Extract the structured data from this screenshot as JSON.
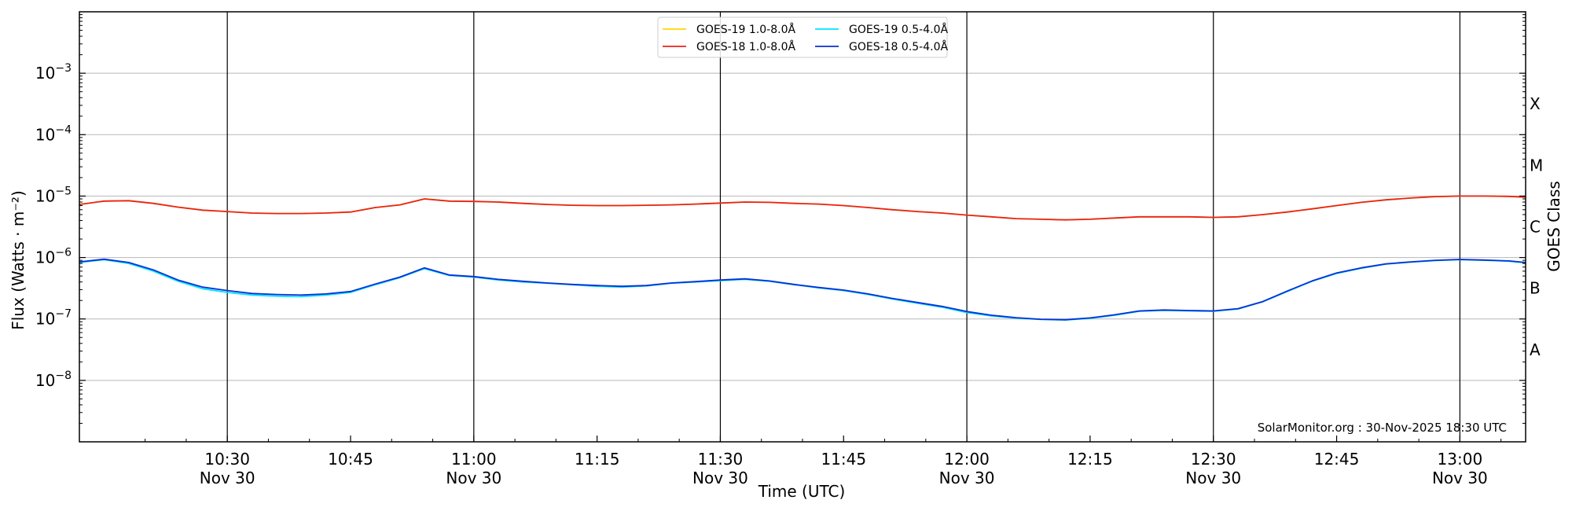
{
  "chart_data": {
    "type": "line",
    "ylabel": "Flux (Watts · m⁻²)",
    "y2label": "GOES Class",
    "xlabel": "Time (UTC)",
    "yscale": "log",
    "ylim": [
      1e-09,
      0.01
    ],
    "xlim": [
      "10:12",
      "13:08"
    ],
    "y_tick_labels": [
      {
        "value": 1e-08,
        "base": "10",
        "exp": "−8"
      },
      {
        "value": 1e-07,
        "base": "10",
        "exp": "−7"
      },
      {
        "value": 1e-06,
        "base": "10",
        "exp": "−6"
      },
      {
        "value": 1e-05,
        "base": "10",
        "exp": "−5"
      },
      {
        "value": 0.0001,
        "base": "10",
        "exp": "−4"
      },
      {
        "value": 0.001,
        "base": "10",
        "exp": "−3"
      }
    ],
    "x_ticks": [
      {
        "time": "10:30",
        "label": "10:30",
        "date": "Nov 30",
        "vline": true
      },
      {
        "time": "10:45",
        "label": "10:45",
        "date": "",
        "vline": false
      },
      {
        "time": "11:00",
        "label": "11:00",
        "date": "Nov 30",
        "vline": true
      },
      {
        "time": "11:15",
        "label": "11:15",
        "date": "",
        "vline": false
      },
      {
        "time": "11:30",
        "label": "11:30",
        "date": "Nov 30",
        "vline": true
      },
      {
        "time": "11:45",
        "label": "11:45",
        "date": "",
        "vline": false
      },
      {
        "time": "12:00",
        "label": "12:00",
        "date": "Nov 30",
        "vline": true
      },
      {
        "time": "12:15",
        "label": "12:15",
        "date": "",
        "vline": false
      },
      {
        "time": "12:30",
        "label": "12:30",
        "date": "Nov 30",
        "vline": true
      },
      {
        "time": "12:45",
        "label": "12:45",
        "date": "",
        "vline": false
      },
      {
        "time": "13:00",
        "label": "13:00",
        "date": "Nov 30",
        "vline": true
      }
    ],
    "goes_classes": [
      {
        "label": "A",
        "center": 3.16e-08
      },
      {
        "label": "B",
        "center": 3.16e-07
      },
      {
        "label": "C",
        "center": 3.16e-06
      },
      {
        "label": "M",
        "center": 3.16e-05
      },
      {
        "label": "X",
        "center": 0.000316
      }
    ],
    "grid": "horizontal at decades",
    "legend": "top-center",
    "series": [
      {
        "name": "GOES-19 1.0-8.0Å",
        "color": "#FFD700",
        "x": [
          "10:12",
          "10:15",
          "10:18",
          "10:21",
          "10:24",
          "10:27",
          "10:30",
          "10:33",
          "10:36",
          "10:39",
          "10:42",
          "10:45",
          "10:48",
          "10:51",
          "10:54",
          "10:57",
          "11:00",
          "11:03",
          "11:06",
          "11:09",
          "11:12",
          "11:15",
          "11:18",
          "11:21",
          "11:24",
          "11:27",
          "11:30",
          "11:33",
          "11:36",
          "11:39",
          "11:42",
          "11:45",
          "11:48",
          "11:51",
          "11:54",
          "11:57",
          "12:00",
          "12:03",
          "12:06",
          "12:09",
          "12:12",
          "12:15",
          "12:18",
          "12:21",
          "12:24",
          "12:27",
          "12:30",
          "12:33",
          "12:36",
          "12:39",
          "12:42",
          "12:45",
          "12:48",
          "12:51",
          "12:54",
          "12:57",
          "13:00",
          "13:03",
          "13:06",
          "13:08"
        ],
        "y": [
          7.3e-06,
          8.3e-06,
          8.4e-06,
          7.6e-06,
          6.6e-06,
          5.9e-06,
          5.6e-06,
          5.3e-06,
          5.2e-06,
          5.2e-06,
          5.3e-06,
          5.5e-06,
          6.5e-06,
          7.2e-06,
          9e-06,
          8.3e-06,
          8.2e-06,
          8e-06,
          7.6e-06,
          7.3e-06,
          7.1e-06,
          7e-06,
          7e-06,
          7.1e-06,
          7.2e-06,
          7.4e-06,
          7.7e-06,
          8e-06,
          7.9e-06,
          7.6e-06,
          7.4e-06,
          7e-06,
          6.5e-06,
          6e-06,
          5.6e-06,
          5.3e-06,
          4.9e-06,
          4.6e-06,
          4.3e-06,
          4.2e-06,
          4.1e-06,
          4.2e-06,
          4.4e-06,
          4.6e-06,
          4.6e-06,
          4.6e-06,
          4.5e-06,
          4.6e-06,
          5e-06,
          5.5e-06,
          6.2e-06,
          7e-06,
          7.9e-06,
          8.7e-06,
          9.3e-06,
          9.8e-06,
          1e-05,
          1e-05,
          9.9e-06,
          9.6e-06
        ]
      },
      {
        "name": "GOES-18 1.0-8.0Å",
        "color": "#E8241A",
        "x": [
          "10:12",
          "10:15",
          "10:18",
          "10:21",
          "10:24",
          "10:27",
          "10:30",
          "10:33",
          "10:36",
          "10:39",
          "10:42",
          "10:45",
          "10:48",
          "10:51",
          "10:54",
          "10:57",
          "11:00",
          "11:03",
          "11:06",
          "11:09",
          "11:12",
          "11:15",
          "11:18",
          "11:21",
          "11:24",
          "11:27",
          "11:30",
          "11:33",
          "11:36",
          "11:39",
          "11:42",
          "11:45",
          "11:48",
          "11:51",
          "11:54",
          "11:57",
          "12:00",
          "12:03",
          "12:06",
          "12:09",
          "12:12",
          "12:15",
          "12:18",
          "12:21",
          "12:24",
          "12:27",
          "12:30",
          "12:33",
          "12:36",
          "12:39",
          "12:42",
          "12:45",
          "12:48",
          "12:51",
          "12:54",
          "12:57",
          "13:00",
          "13:03",
          "13:06",
          "13:08"
        ],
        "y": [
          7.3e-06,
          8.3e-06,
          8.4e-06,
          7.6e-06,
          6.6e-06,
          5.9e-06,
          5.6e-06,
          5.3e-06,
          5.2e-06,
          5.2e-06,
          5.3e-06,
          5.5e-06,
          6.5e-06,
          7.2e-06,
          9e-06,
          8.3e-06,
          8.2e-06,
          8e-06,
          7.6e-06,
          7.3e-06,
          7.1e-06,
          7e-06,
          7e-06,
          7.1e-06,
          7.2e-06,
          7.4e-06,
          7.7e-06,
          8e-06,
          7.9e-06,
          7.6e-06,
          7.4e-06,
          7e-06,
          6.5e-06,
          6e-06,
          5.6e-06,
          5.3e-06,
          4.9e-06,
          4.6e-06,
          4.3e-06,
          4.2e-06,
          4.1e-06,
          4.2e-06,
          4.4e-06,
          4.6e-06,
          4.6e-06,
          4.6e-06,
          4.5e-06,
          4.6e-06,
          5e-06,
          5.5e-06,
          6.2e-06,
          7e-06,
          7.9e-06,
          8.7e-06,
          9.3e-06,
          9.8e-06,
          1e-05,
          1e-05,
          9.9e-06,
          9.6e-06
        ]
      },
      {
        "name": "GOES-19 0.5-4.0Å",
        "color": "#00E5FF",
        "x": [
          "10:12",
          "10:15",
          "10:18",
          "10:21",
          "10:24",
          "10:27",
          "10:30",
          "10:33",
          "10:36",
          "10:39",
          "10:42",
          "10:45",
          "10:48",
          "10:51",
          "10:54",
          "10:57",
          "11:00",
          "11:03",
          "11:06",
          "11:09",
          "11:12",
          "11:15",
          "11:18",
          "11:21",
          "11:24",
          "11:27",
          "11:30",
          "11:33",
          "11:36",
          "11:39",
          "11:42",
          "11:45",
          "11:48",
          "11:51",
          "11:54",
          "11:57",
          "12:00",
          "12:03",
          "12:06",
          "12:09",
          "12:12",
          "12:15",
          "12:18",
          "12:21",
          "12:24",
          "12:27",
          "12:30",
          "12:33",
          "12:36",
          "12:39",
          "12:42",
          "12:45",
          "12:48",
          "12:51",
          "12:54",
          "12:57",
          "13:00",
          "13:03",
          "13:06",
          "13:08"
        ],
        "y": [
          8.3e-07,
          9.2e-07,
          8e-07,
          6e-07,
          4.1e-07,
          3.1e-07,
          2.7e-07,
          2.45e-07,
          2.35e-07,
          2.3e-07,
          2.45e-07,
          2.7e-07,
          3.6e-07,
          4.7e-07,
          6.6e-07,
          5.1e-07,
          4.8e-07,
          4.3e-07,
          4e-07,
          3.8e-07,
          3.6e-07,
          3.4e-07,
          3.3e-07,
          3.45e-07,
          3.8e-07,
          4e-07,
          4.2e-07,
          4.4e-07,
          4.1e-07,
          3.6e-07,
          3.2e-07,
          2.9e-07,
          2.5e-07,
          2.1e-07,
          1.8e-07,
          1.55e-07,
          1.27e-07,
          1.12e-07,
          1.03e-07,
          9.8e-08,
          9.6e-08,
          1.02e-07,
          1.15e-07,
          1.33e-07,
          1.38e-07,
          1.35e-07,
          1.33e-07,
          1.45e-07,
          1.9e-07,
          2.8e-07,
          4.1e-07,
          5.5e-07,
          6.7e-07,
          7.8e-07,
          8.4e-07,
          8.9e-07,
          9.2e-07,
          9e-07,
          8.7e-07,
          8.2e-07
        ]
      },
      {
        "name": "GOES-18 0.5-4.0Å",
        "color": "#0A2FD6",
        "x": [
          "10:12",
          "10:15",
          "10:18",
          "10:21",
          "10:24",
          "10:27",
          "10:30",
          "10:33",
          "10:36",
          "10:39",
          "10:42",
          "10:45",
          "10:48",
          "10:51",
          "10:54",
          "10:57",
          "11:00",
          "11:03",
          "11:06",
          "11:09",
          "11:12",
          "11:15",
          "11:18",
          "11:21",
          "11:24",
          "11:27",
          "11:30",
          "11:33",
          "11:36",
          "11:39",
          "11:42",
          "11:45",
          "11:48",
          "11:51",
          "11:54",
          "11:57",
          "12:00",
          "12:03",
          "12:06",
          "12:09",
          "12:12",
          "12:15",
          "12:18",
          "12:21",
          "12:24",
          "12:27",
          "12:30",
          "12:33",
          "12:36",
          "12:39",
          "12:42",
          "12:45",
          "12:48",
          "12:51",
          "12:54",
          "12:57",
          "13:00",
          "13:03",
          "13:06",
          "13:08"
        ],
        "y": [
          8.5e-07,
          9.4e-07,
          8.3e-07,
          6.3e-07,
          4.3e-07,
          3.3e-07,
          2.9e-07,
          2.6e-07,
          2.5e-07,
          2.45e-07,
          2.55e-07,
          2.8e-07,
          3.7e-07,
          4.8e-07,
          6.8e-07,
          5.2e-07,
          4.9e-07,
          4.4e-07,
          4.1e-07,
          3.85e-07,
          3.65e-07,
          3.5e-07,
          3.4e-07,
          3.5e-07,
          3.85e-07,
          4.05e-07,
          4.3e-07,
          4.5e-07,
          4.15e-07,
          3.65e-07,
          3.25e-07,
          2.95e-07,
          2.55e-07,
          2.15e-07,
          1.85e-07,
          1.6e-07,
          1.32e-07,
          1.15e-07,
          1.05e-07,
          9.9e-08,
          9.7e-08,
          1.04e-07,
          1.17e-07,
          1.35e-07,
          1.4e-07,
          1.37e-07,
          1.35e-07,
          1.47e-07,
          1.92e-07,
          2.85e-07,
          4.15e-07,
          5.6e-07,
          6.8e-07,
          7.9e-07,
          8.5e-07,
          9e-07,
          9.3e-07,
          9.1e-07,
          8.8e-07,
          8.3e-07
        ]
      }
    ],
    "credit": "SolarMonitor.org : 30-Nov-2025 18:30 UTC"
  }
}
